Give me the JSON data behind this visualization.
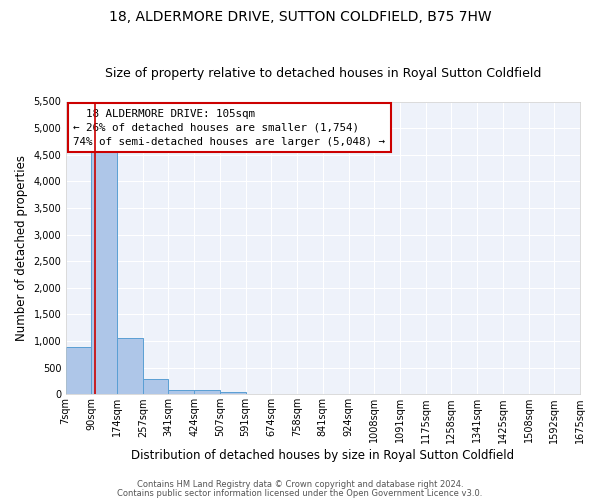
{
  "title": "18, ALDERMORE DRIVE, SUTTON COLDFIELD, B75 7HW",
  "subtitle": "Size of property relative to detached houses in Royal Sutton Coldfield",
  "xlabel": "Distribution of detached houses by size in Royal Sutton Coldfield",
  "ylabel": "Number of detached properties",
  "footnote1": "Contains HM Land Registry data © Crown copyright and database right 2024.",
  "footnote2": "Contains public sector information licensed under the Open Government Licence v3.0.",
  "bin_labels": [
    "7sqm",
    "90sqm",
    "174sqm",
    "257sqm",
    "341sqm",
    "424sqm",
    "507sqm",
    "591sqm",
    "674sqm",
    "758sqm",
    "841sqm",
    "924sqm",
    "1008sqm",
    "1091sqm",
    "1175sqm",
    "1258sqm",
    "1341sqm",
    "1425sqm",
    "1508sqm",
    "1592sqm",
    "1675sqm"
  ],
  "bar_values": [
    880,
    4570,
    1060,
    290,
    85,
    75,
    50,
    0,
    0,
    0,
    0,
    0,
    0,
    0,
    0,
    0,
    0,
    0,
    0,
    0
  ],
  "ylim": [
    0,
    5500
  ],
  "yticks": [
    0,
    500,
    1000,
    1500,
    2000,
    2500,
    3000,
    3500,
    4000,
    4500,
    5000,
    5500
  ],
  "bar_color": "#aec6e8",
  "bar_edge_color": "#5a9fd4",
  "property_line_x": 1.15,
  "property_line_color": "#cc0000",
  "annotation_text": "  18 ALDERMORE DRIVE: 105sqm\n← 26% of detached houses are smaller (1,754)\n74% of semi-detached houses are larger (5,048) →",
  "annotation_box_color": "#ffffff",
  "annotation_box_edge_color": "#cc0000",
  "background_color": "#eef2fa",
  "grid_color": "#ffffff",
  "title_fontsize": 10,
  "subtitle_fontsize": 9,
  "axis_label_fontsize": 8.5,
  "tick_fontsize": 7,
  "footnote_fontsize": 6
}
